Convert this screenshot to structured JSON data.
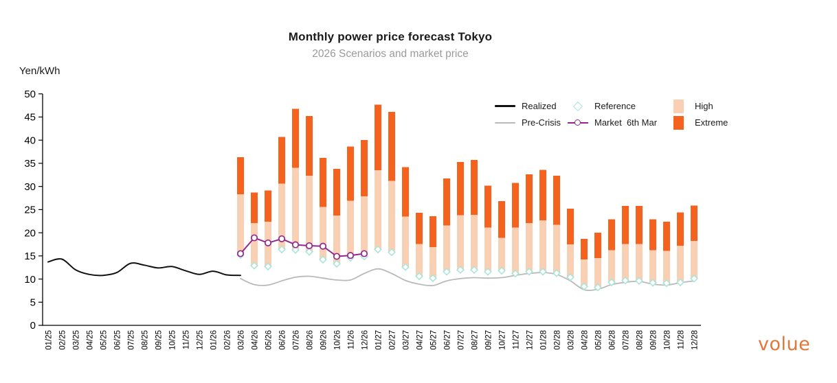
{
  "header": {
    "title": "Monthly power price forecast Tokyo",
    "subtitle": "2026 Scenarios and market price"
  },
  "logo": {
    "text": "volue",
    "color": "#e2773b"
  },
  "colors": {
    "realized": "#111111",
    "pre_crisis": "#b9b9b9",
    "reference_marker": "#ace4da",
    "market": "#93278c",
    "high_bar": "#fad0b4",
    "extreme_bar": "#f4621d",
    "axis": "#000000",
    "subtitle_text": "#9a9a9a"
  },
  "legend": {
    "items": [
      {
        "label": "Realized",
        "swatch": "line-black"
      },
      {
        "label": "Reference",
        "swatch": "diamond"
      },
      {
        "label": "High",
        "swatch": "rect-high"
      },
      {
        "label": "Pre-Crisis",
        "swatch": "line-gray"
      },
      {
        "label": "Market  6th Mar",
        "swatch": "line-circle"
      },
      {
        "label": "Extreme",
        "swatch": "rect-extreme"
      }
    ]
  },
  "chart_data": {
    "type": "combo (floating stacked bars + lines + diamond markers)",
    "unit": "Yen/kWh",
    "ylim": [
      0,
      50
    ],
    "y_ticks": [
      0,
      5,
      10,
      15,
      20,
      25,
      30,
      35,
      40,
      45,
      50
    ],
    "grid": "off",
    "legend_position": "top-right, two rows",
    "months": [
      "01/25",
      "02/25",
      "03/25",
      "04/25",
      "05/25",
      "06/25",
      "07/25",
      "08/25",
      "09/25",
      "10/25",
      "11/25",
      "12/25",
      "01/26",
      "02/26",
      "03/26",
      "04/26",
      "05/26",
      "06/26",
      "07/26",
      "08/26",
      "09/26",
      "10/26",
      "11/26",
      "12/26",
      "01/27",
      "02/27",
      "03/27",
      "04/27",
      "05/27",
      "06/27",
      "07/27",
      "08/27",
      "09/27",
      "10/27",
      "11/27",
      "12/27",
      "01/28",
      "02/28",
      "03/28",
      "04/28",
      "05/28",
      "06/28",
      "07/28",
      "08/28",
      "09/28",
      "10/28",
      "11/28",
      "12/28"
    ],
    "realized": {
      "start_month": "01/25",
      "values": [
        13.7,
        14.3,
        12.0,
        11.0,
        10.8,
        11.4,
        13.4,
        13.0,
        12.4,
        12.7,
        11.8,
        11.0,
        11.7,
        10.9,
        10.8
      ]
    },
    "pre_crisis": {
      "start_month": "03/26",
      "values": [
        10.1,
        8.8,
        8.7,
        9.6,
        10.4,
        10.6,
        10.2,
        9.8,
        9.8,
        11.2,
        12.2,
        11.2,
        9.7,
        8.9,
        8.6,
        9.6,
        10.1,
        10.3,
        10.2,
        10.3,
        10.8,
        11.2,
        11.4,
        11.0,
        9.6,
        7.7,
        7.8,
        8.8,
        9.3,
        9.5,
        8.9,
        8.7,
        9.2,
        9.6
      ]
    },
    "reference": {
      "start_month": "03/26",
      "values": [
        15.2,
        12.9,
        12.7,
        16.4,
        16.3,
        15.9,
        14.2,
        13.3,
        14.6,
        14.9,
        16.4,
        15.8,
        12.6,
        10.6,
        10.2,
        11.6,
        12.0,
        12.0,
        11.6,
        11.8,
        11.2,
        11.6,
        11.6,
        11.3,
        10.4,
        8.4,
        8.2,
        9.3,
        9.7,
        9.6,
        9.2,
        9.1,
        9.3,
        10.1
      ]
    },
    "market_6th_mar": {
      "start_month": "03/26",
      "values": [
        15.5,
        18.9,
        17.8,
        18.7,
        17.4,
        17.2,
        17.1,
        14.9,
        15.1,
        15.5
      ]
    },
    "bars": {
      "start_month": "03/26",
      "bottom_reference": [
        15.2,
        12.9,
        12.7,
        16.4,
        16.3,
        15.9,
        14.2,
        13.3,
        14.6,
        14.9,
        16.4,
        15.8,
        12.6,
        10.6,
        10.2,
        11.6,
        12.0,
        12.0,
        11.6,
        11.8,
        11.2,
        11.6,
        11.6,
        11.3,
        10.4,
        8.4,
        8.2,
        9.3,
        9.7,
        9.6,
        9.2,
        9.1,
        9.3,
        10.1
      ],
      "high_top": [
        28.3,
        22.1,
        22.4,
        30.6,
        34.0,
        32.3,
        25.6,
        23.7,
        26.9,
        27.9,
        33.5,
        31.2,
        23.5,
        17.6,
        16.9,
        21.6,
        23.8,
        23.9,
        21.1,
        18.9,
        21.1,
        22.1,
        22.7,
        21.7,
        17.5,
        14.2,
        14.5,
        16.2,
        17.6,
        17.6,
        16.2,
        16.1,
        17.2,
        18.2
      ],
      "extreme_top": [
        36.3,
        28.7,
        29.1,
        40.7,
        46.8,
        45.2,
        36.2,
        33.8,
        38.6,
        40.0,
        47.7,
        46.1,
        34.2,
        24.3,
        23.6,
        31.7,
        35.3,
        35.7,
        30.2,
        26.8,
        30.8,
        32.6,
        33.6,
        32.3,
        25.2,
        18.7,
        20.0,
        22.9,
        25.8,
        25.8,
        22.9,
        22.4,
        24.4,
        25.9
      ]
    }
  }
}
